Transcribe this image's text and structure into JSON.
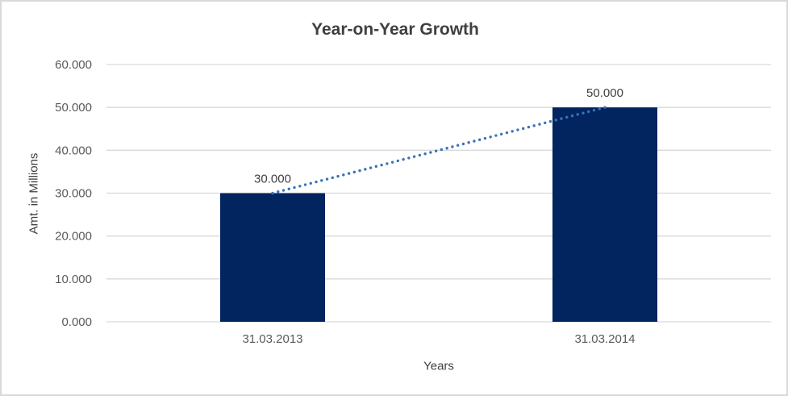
{
  "chart_data": {
    "type": "bar",
    "title": "Year-on-Year Growth",
    "xlabel": "Years",
    "ylabel": "Amt. in Millions",
    "categories": [
      "31.03.2013",
      "31.03.2014"
    ],
    "values": [
      30,
      50
    ],
    "data_labels": [
      "30.000",
      "50.000"
    ],
    "y_ticks": [
      "60.000",
      "50.000",
      "40.000",
      "30.000",
      "20.000",
      "10.000",
      "0.000"
    ],
    "ylim": [
      0,
      60
    ],
    "y_tick_step": 10,
    "grid": true,
    "legend": "none",
    "trendline": {
      "style": "dotted",
      "from_value": 30,
      "to_value": 50,
      "color": "#3b73b6"
    },
    "colors": {
      "bar": "#02245f",
      "gridline": "#d9d9d9",
      "frame_border": "#d9d9d9",
      "title_text": "#404040",
      "axis_title_text": "#404040",
      "tick_label_text": "#595959",
      "data_label_text": "#404040",
      "background": "#ffffff"
    }
  }
}
